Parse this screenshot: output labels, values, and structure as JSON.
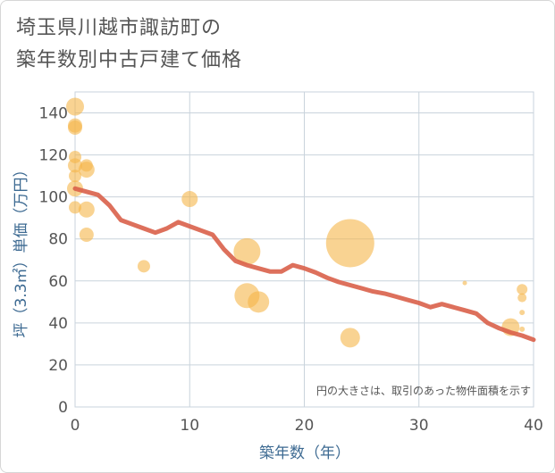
{
  "header": {
    "title_line1": "埼玉県川越市諏訪町の",
    "title_line2": "築年数別中古戸建て価格"
  },
  "chart_data": {
    "type": "scatter",
    "title": "埼玉県川越市諏訪町の築年数別中古戸建て価格",
    "xlabel": "築年数（年）",
    "ylabel": "坪（3.3㎡）単価（万円）",
    "xlim": [
      0,
      40
    ],
    "ylim": [
      0,
      150
    ],
    "xticks": [
      0,
      10,
      20,
      30,
      40
    ],
    "yticks": [
      0,
      20,
      40,
      60,
      80,
      100,
      120,
      140
    ],
    "grid": true,
    "annotation": "円の大きさは、取引のあった物件面積を示す",
    "colors": {
      "bubble": "#f5b54a",
      "trend": "#d9604a",
      "grid": "#c9d3dc",
      "axis_text": "#3d6a92"
    },
    "series": [
      {
        "name": "取引事例",
        "kind": "bubble",
        "points": [
          {
            "x": 0,
            "y": 143,
            "size": 10
          },
          {
            "x": 0,
            "y": 134,
            "size": 8
          },
          {
            "x": 0,
            "y": 133,
            "size": 8
          },
          {
            "x": 0,
            "y": 119,
            "size": 7
          },
          {
            "x": 0,
            "y": 115,
            "size": 8
          },
          {
            "x": 0,
            "y": 110,
            "size": 7
          },
          {
            "x": 0,
            "y": 104,
            "size": 9
          },
          {
            "x": 0,
            "y": 95,
            "size": 7
          },
          {
            "x": 1,
            "y": 115,
            "size": 7
          },
          {
            "x": 1,
            "y": 113,
            "size": 9
          },
          {
            "x": 1,
            "y": 94,
            "size": 9
          },
          {
            "x": 1,
            "y": 82,
            "size": 8
          },
          {
            "x": 6,
            "y": 67,
            "size": 7
          },
          {
            "x": 10,
            "y": 99,
            "size": 9
          },
          {
            "x": 15,
            "y": 74,
            "size": 15
          },
          {
            "x": 15,
            "y": 53,
            "size": 14
          },
          {
            "x": 16,
            "y": 50,
            "size": 12
          },
          {
            "x": 24,
            "y": 78,
            "size": 27
          },
          {
            "x": 24,
            "y": 33,
            "size": 11
          },
          {
            "x": 34,
            "y": 59,
            "size": 2.5
          },
          {
            "x": 38,
            "y": 38,
            "size": 10
          },
          {
            "x": 39,
            "y": 56,
            "size": 6
          },
          {
            "x": 39,
            "y": 52,
            "size": 5
          },
          {
            "x": 39,
            "y": 45,
            "size": 3
          },
          {
            "x": 39,
            "y": 37,
            "size": 3
          }
        ]
      },
      {
        "name": "トレンド",
        "kind": "line",
        "x": [
          0,
          1,
          2,
          3,
          4,
          5,
          6,
          7,
          8,
          9,
          10,
          11,
          12,
          13,
          14,
          15,
          16,
          17,
          18,
          19,
          20,
          21,
          22,
          23,
          24,
          25,
          26,
          27,
          28,
          29,
          30,
          31,
          32,
          33,
          34,
          35,
          36,
          37,
          38,
          39,
          40
        ],
        "y": [
          104,
          102.5,
          101,
          96,
          89,
          87,
          85,
          83,
          85,
          88,
          86,
          84,
          82,
          75,
          69.5,
          67.5,
          66,
          64.5,
          64.5,
          67.5,
          66,
          64,
          61.5,
          59.5,
          58,
          56.5,
          55,
          54,
          52.5,
          51,
          49.5,
          47.5,
          49,
          47.5,
          46,
          44.5,
          40,
          37.5,
          35.5,
          34,
          32
        ]
      }
    ]
  }
}
